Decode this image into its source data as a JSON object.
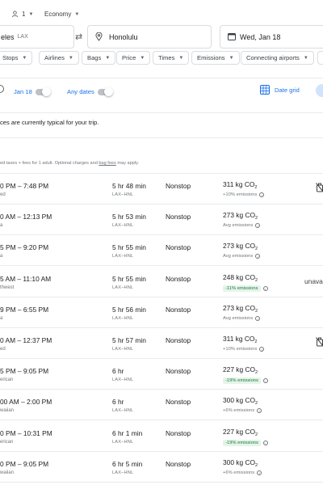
{
  "search": {
    "passengers": "1",
    "cabin": "Economy",
    "from_text": "eles",
    "from_code": "LAX",
    "to_text": "Honolulu",
    "depart_date": "Wed, Jan 18"
  },
  "filters": [
    "Stops",
    "Airlines",
    "Bags",
    "Price",
    "Times",
    "Emissions",
    "Connecting airports"
  ],
  "date_bar": {
    "date": "Jan 18",
    "any_dates": "Any dates",
    "date_grid": "Date grid"
  },
  "price_notice": "ces are currently typical for your trip.",
  "fine_print": {
    "before": "ed taxes + fees for 1 adult. Optional charges and ",
    "link": "bag fees",
    "after": " may apply."
  },
  "flights": [
    {
      "time": "0 PM – 7:48 PM",
      "airline": "ed",
      "duration": "5 hr 48 min",
      "route": "LAX–HNL",
      "stops": "Nonstop",
      "co2": "311 kg CO",
      "co2_sub": "2",
      "emissions": "+10% emissions",
      "emissions_style": "normal",
      "extra": "no-bags-icon"
    },
    {
      "time": "0 AM – 12:13 PM",
      "airline": "a",
      "duration": "5 hr 53 min",
      "route": "LAX–HNL",
      "stops": "Nonstop",
      "co2": "273 kg CO",
      "co2_sub": "2",
      "emissions": "Avg emissions",
      "emissions_style": "normal",
      "extra": ""
    },
    {
      "time": "5 PM – 9:20 PM",
      "airline": "a",
      "duration": "5 hr 55 min",
      "route": "LAX–HNL",
      "stops": "Nonstop",
      "co2": "273 kg CO",
      "co2_sub": "2",
      "emissions": "Avg emissions",
      "emissions_style": "normal",
      "extra": ""
    },
    {
      "time": "5 AM – 11:10 AM",
      "airline": "thwest",
      "duration": "5 hr 55 min",
      "route": "LAX–HNL",
      "stops": "Nonstop",
      "co2": "248 kg CO",
      "co2_sub": "2",
      "emissions": "-11% emissions",
      "emissions_style": "low",
      "extra": "unava"
    },
    {
      "time": "9 PM – 6:55 PM",
      "airline": "a",
      "duration": "5 hr 56 min",
      "route": "LAX–HNL",
      "stops": "Nonstop",
      "co2": "273 kg CO",
      "co2_sub": "2",
      "emissions": "Avg emissions",
      "emissions_style": "normal",
      "extra": ""
    },
    {
      "time": "0 AM – 12:37 PM",
      "airline": "ed",
      "duration": "5 hr 57 min",
      "route": "LAX–HNL",
      "stops": "Nonstop",
      "co2": "311 kg CO",
      "co2_sub": "2",
      "emissions": "+10% emissions",
      "emissions_style": "normal",
      "extra": "no-bags-icon"
    },
    {
      "time": "5 PM – 9:05 PM",
      "airline": "erican",
      "duration": "6 hr",
      "route": "LAX–HNL",
      "stops": "Nonstop",
      "co2": "227 kg CO",
      "co2_sub": "2",
      "emissions": "-19% emissions",
      "emissions_style": "low",
      "extra": ""
    },
    {
      "time": "00 AM – 2:00 PM",
      "airline": "waiian",
      "duration": "6 hr",
      "route": "LAX–HNL",
      "stops": "Nonstop",
      "co2": "300 kg CO",
      "co2_sub": "2",
      "emissions": "+6% emissions",
      "emissions_style": "normal",
      "extra": ""
    },
    {
      "time": "0 PM – 10:31 PM",
      "airline": "erican",
      "duration": "6 hr 1 min",
      "route": "LAX–HNL",
      "stops": "Nonstop",
      "co2": "227 kg CO",
      "co2_sub": "2",
      "emissions": "-19% emissions",
      "emissions_style": "low",
      "extra": ""
    },
    {
      "time": "0 PM – 9:05 PM",
      "airline": "waiian",
      "duration": "6 hr 5 min",
      "route": "LAX–HNL",
      "stops": "Nonstop",
      "co2": "300 kg CO",
      "co2_sub": "2",
      "emissions": "+6% emissions",
      "emissions_style": "normal",
      "extra": ""
    }
  ]
}
